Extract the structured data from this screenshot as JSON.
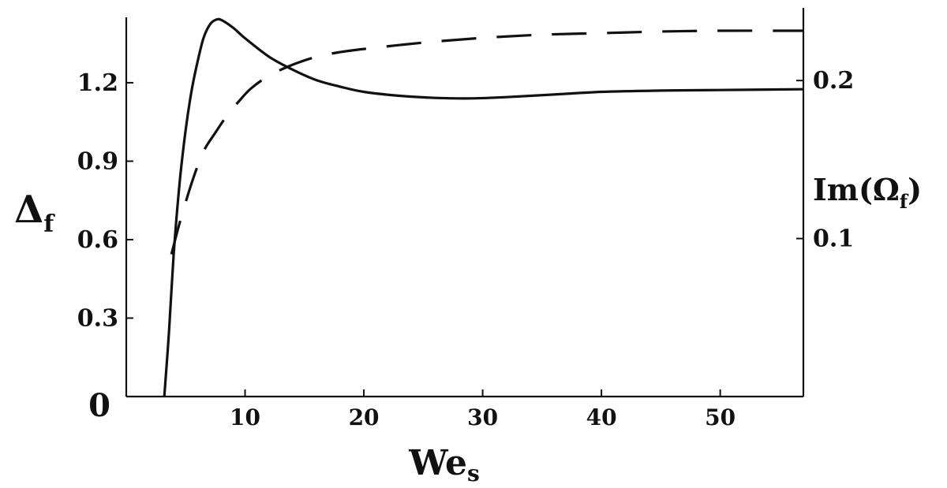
{
  "chart_data": {
    "type": "line",
    "x_axis": {
      "label_main": "We",
      "label_sub": "s",
      "range": [
        0,
        57
      ],
      "ticks": [
        10,
        20,
        30,
        40,
        50
      ]
    },
    "y_left": {
      "label_main": "Δ",
      "label_sub": "f",
      "range": [
        0,
        1.45
      ],
      "ticks": [
        0,
        0.3,
        0.6,
        0.9,
        1.2
      ],
      "tick_labels": [
        "0",
        "0.3",
        "0.6",
        "0.9",
        "1.2"
      ]
    },
    "y_right": {
      "label_prefix": "Im(Ω",
      "label_sub": "f",
      "label_suffix": ")",
      "range": [
        0,
        0.24
      ],
      "ticks": [
        0.1,
        0.2
      ],
      "tick_labels": [
        "0.1",
        "0.2"
      ]
    },
    "series": [
      {
        "axis": "left",
        "style": "solid",
        "x": [
          3.2,
          3.6,
          4.0,
          4.5,
          5.0,
          5.5,
          6.0,
          6.5,
          7.0,
          7.5,
          8.0,
          9.0,
          10.0,
          12.0,
          14.0,
          16.0,
          18.0,
          20.0,
          23.0,
          26.0,
          29.0,
          32.0,
          36.0,
          40.0,
          45.0,
          50.0,
          57.0
        ],
        "y": [
          0.0,
          0.25,
          0.55,
          0.82,
          1.02,
          1.17,
          1.28,
          1.37,
          1.42,
          1.44,
          1.44,
          1.41,
          1.37,
          1.3,
          1.25,
          1.21,
          1.185,
          1.165,
          1.15,
          1.142,
          1.14,
          1.145,
          1.155,
          1.165,
          1.17,
          1.172,
          1.175
        ]
      },
      {
        "axis": "right",
        "style": "dashed",
        "x": [
          3.8,
          4.5,
          5.5,
          6.5,
          7.5,
          8.5,
          9.5,
          10.5,
          12.0,
          14.0,
          16.0,
          18.0,
          20.0,
          25.0,
          30.0,
          35.0,
          40.0,
          45.0,
          50.0,
          57.0
        ],
        "y": [
          0.09,
          0.11,
          0.135,
          0.155,
          0.167,
          0.178,
          0.187,
          0.195,
          0.203,
          0.21,
          0.215,
          0.218,
          0.22,
          0.224,
          0.227,
          0.229,
          0.23,
          0.231,
          0.2315,
          0.2315
        ]
      }
    ]
  }
}
